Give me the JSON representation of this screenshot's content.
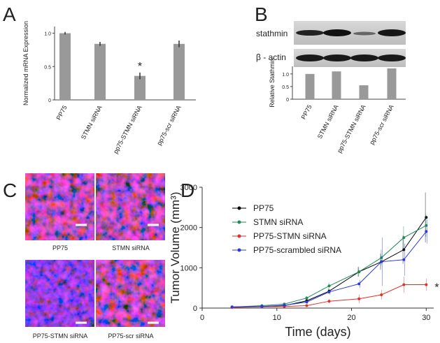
{
  "panel_labels": [
    "A",
    "B",
    "C",
    "D"
  ],
  "blot_labels": [
    "stathmin",
    "β - actin"
  ],
  "images": [
    "PP75",
    "STMN siRNA",
    "PP75-STMN siRNA",
    "PP75-scr siRNA"
  ],
  "chart_data": [
    {
      "type": "bar",
      "ylabel": "Normalized mRNA Expression",
      "categories": [
        "PP75",
        "STMN siRNA",
        "pp75-STMN siRNA",
        "pp75-scr siRNA"
      ],
      "values": [
        1.0,
        0.84,
        0.36,
        0.84
      ],
      "errors": [
        0.02,
        0.03,
        0.05,
        0.05
      ],
      "color": "#999999",
      "ylim": [
        0,
        1.1
      ],
      "yticks": [
        0,
        0.5,
        {
          "value": 1,
          "label": "1.0"
        }
      ],
      "annotation": "*"
    },
    {
      "type": "bar",
      "ylabel": "Relative Stathmin",
      "categories": [
        "PP75",
        "STMN siRNA",
        "pp75-STMN siRNA",
        "pp75-scr siRNA"
      ],
      "values": [
        1.0,
        1.1,
        0.55,
        1.22
      ],
      "color": "#999999",
      "ylim": [
        0,
        1.3
      ],
      "yticks": [
        0,
        0.5,
        {
          "value": 1,
          "label": "1.0"
        }
      ]
    },
    {
      "type": "line",
      "xlabel": "Time (days)",
      "ylabel": "Tumor Volume (mm³)",
      "xlim": [
        0,
        31
      ],
      "xticks": [
        0,
        10,
        20,
        30
      ],
      "ylim": [
        0,
        3000
      ],
      "yticks": [
        0,
        1000,
        2000,
        3000
      ],
      "annotation": "*",
      "x": [
        4,
        8,
        11,
        14,
        17,
        21,
        24,
        27,
        30
      ],
      "series": [
        {
          "name": "PP75",
          "color": "#000000",
          "values": [
            20,
            40,
            60,
            180,
            420,
            900,
            1150,
            1450,
            2250
          ],
          "errors": [
            10,
            15,
            20,
            40,
            60,
            120,
            200,
            350,
            620
          ]
        },
        {
          "name": "STMN siRNA",
          "color": "#1f8a5a",
          "values": [
            25,
            60,
            100,
            250,
            550,
            900,
            1250,
            1750,
            2050
          ],
          "errors": [
            10,
            20,
            30,
            50,
            80,
            120,
            200,
            280,
            280
          ]
        },
        {
          "name": "PP75-STMN siRNA",
          "color": "#e0302a",
          "values": [
            15,
            30,
            40,
            60,
            170,
            230,
            330,
            580,
            580
          ],
          "errors": [
            5,
            10,
            15,
            20,
            60,
            110,
            120,
            200,
            150
          ]
        },
        {
          "name": "PP75-scrambled siRNA",
          "color": "#2a3ad8",
          "values": [
            30,
            40,
            70,
            150,
            400,
            600,
            1150,
            1200,
            1900
          ],
          "errors": [
            10,
            15,
            20,
            40,
            70,
            100,
            600,
            400,
            300
          ]
        }
      ]
    }
  ]
}
